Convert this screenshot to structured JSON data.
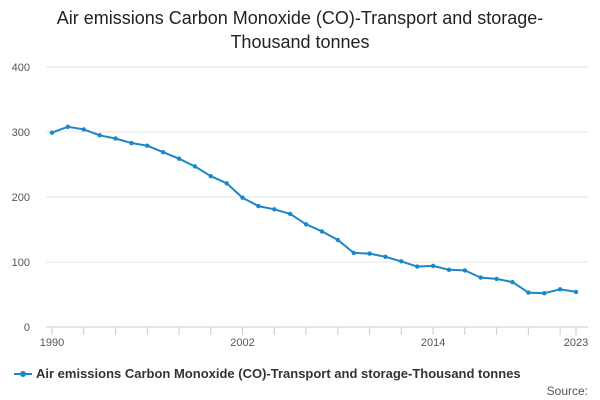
{
  "title_lines": [
    "Air emissions Carbon Monoxide (CO)-Transport and storage-",
    "Thousand tonnes"
  ],
  "source_label": "Source:",
  "colors": {
    "series": "#1b87c6",
    "grid": "#e6e6e6",
    "axis": "#cccccc",
    "tick_text": "#555555"
  },
  "chart_data": {
    "type": "line",
    "title": "Air emissions Carbon Monoxide (CO)-Transport and storage-Thousand tonnes",
    "xlabel": "",
    "ylabel": "",
    "ylim": [
      0,
      400
    ],
    "yticks": [
      0,
      100,
      200,
      300,
      400
    ],
    "xlim": [
      1990,
      2023
    ],
    "xticks_labeled": [
      1990,
      2002,
      2014,
      2023
    ],
    "xticks_minor": [
      1992,
      1994,
      1996,
      1998,
      2000,
      2004,
      2006,
      2008,
      2010,
      2012,
      2016,
      2018,
      2020,
      2022
    ],
    "grid": true,
    "legend": "bottom-left",
    "series": [
      {
        "name": "Air emissions Carbon Monoxide (CO)-Transport and storage-Thousand tonnes",
        "x": [
          1990,
          1991,
          1992,
          1993,
          1994,
          1995,
          1996,
          1997,
          1998,
          1999,
          2000,
          2001,
          2002,
          2003,
          2004,
          2005,
          2006,
          2007,
          2008,
          2009,
          2010,
          2011,
          2012,
          2013,
          2014,
          2015,
          2016,
          2017,
          2018,
          2019,
          2020,
          2021,
          2022,
          2023
        ],
        "values": [
          299,
          308,
          304,
          295,
          290,
          283,
          279,
          269,
          259,
          247,
          232,
          221,
          199,
          186,
          181,
          174,
          158,
          147,
          134,
          114,
          113,
          108,
          101,
          93,
          94,
          88,
          87,
          76,
          74,
          69,
          53,
          52,
          58,
          54
        ]
      }
    ]
  }
}
